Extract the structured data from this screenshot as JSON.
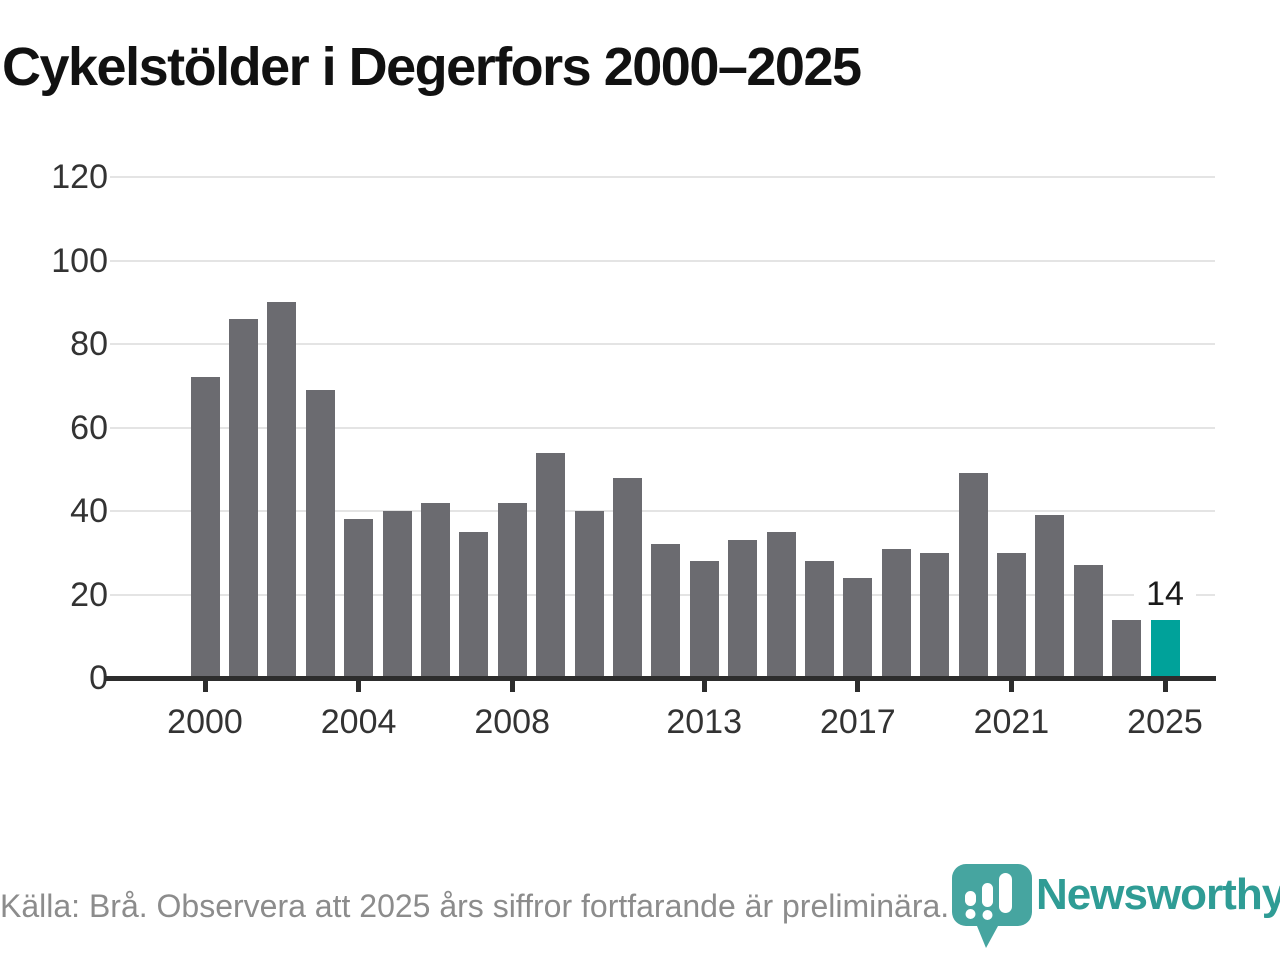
{
  "page": {
    "title": "Cykelstölder i Degerfors 2000–2025"
  },
  "chart_data": {
    "type": "bar",
    "title": "Cykelstölder i Degerfors 2000–2025",
    "x": [
      2000,
      2001,
      2002,
      2003,
      2004,
      2005,
      2006,
      2007,
      2008,
      2009,
      2010,
      2011,
      2012,
      2013,
      2014,
      2015,
      2016,
      2017,
      2018,
      2019,
      2020,
      2021,
      2022,
      2023,
      2024,
      2025
    ],
    "values": [
      72,
      86,
      90,
      69,
      38,
      40,
      42,
      35,
      42,
      54,
      40,
      48,
      32,
      28,
      33,
      35,
      28,
      24,
      31,
      30,
      49,
      30,
      39,
      27,
      14,
      14
    ],
    "ylim": [
      0,
      120
    ],
    "yticks": [
      0,
      20,
      40,
      60,
      80,
      100,
      120
    ],
    "xtick_years": [
      2000,
      2004,
      2008,
      2013,
      2017,
      2021,
      2025
    ],
    "grid": "horizontal",
    "legend": "none",
    "bar_color": "#6b6b70",
    "highlight_index": 25,
    "highlight_color": "#00a29a",
    "annotations": [
      {
        "index": 25,
        "text": "14"
      }
    ]
  },
  "footer": {
    "source": "Källa: Brå. Observera att 2025 års siffror fortfarande är preliminära.",
    "brand": "Newsworthy",
    "brand_color": "#2f9c95",
    "pin_color": "#46a5a0"
  }
}
